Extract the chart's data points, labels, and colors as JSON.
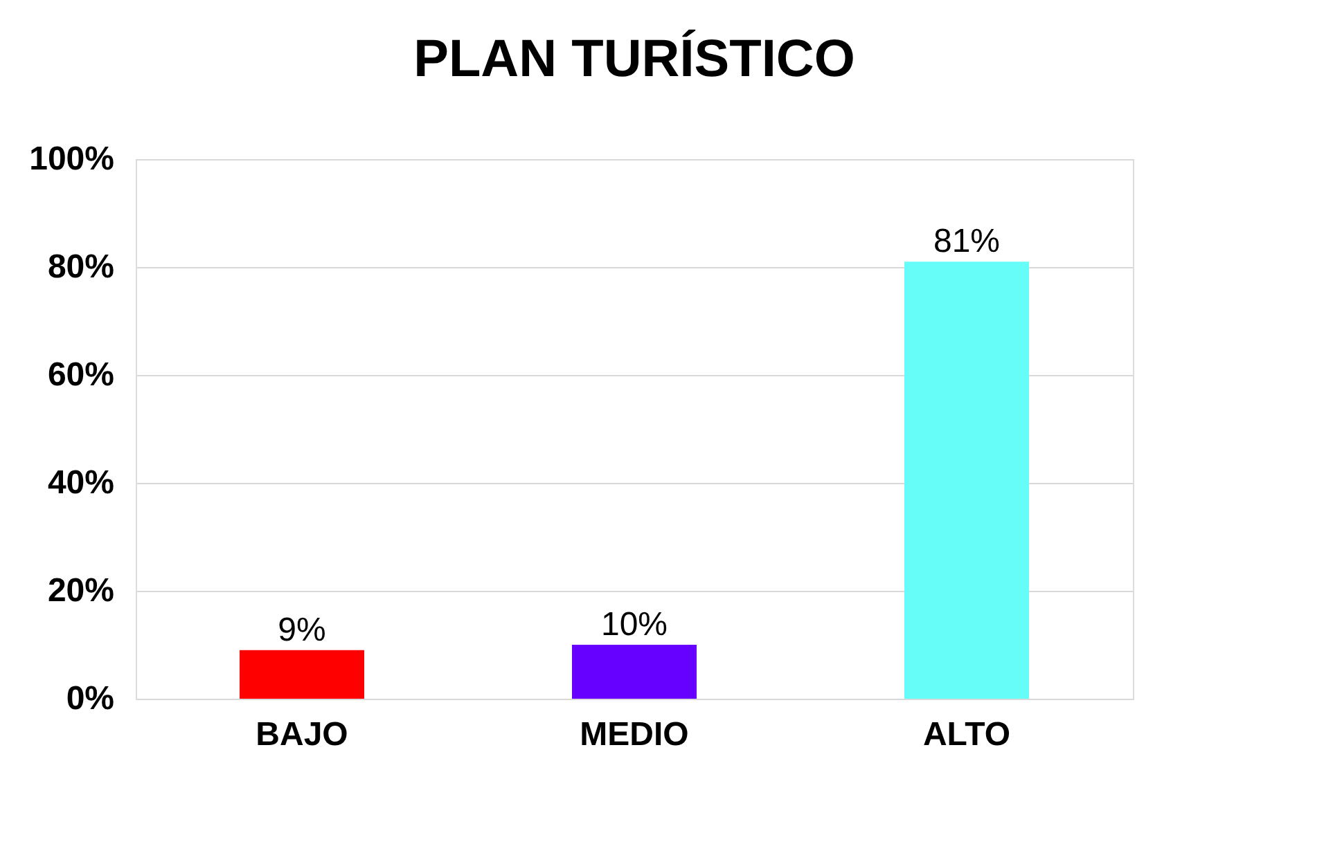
{
  "chart_data": {
    "type": "bar",
    "title": "PLAN TURÍSTICO",
    "categories": [
      "BAJO",
      "MEDIO",
      "ALTO"
    ],
    "values": [
      9,
      10,
      81
    ],
    "colors": [
      "#ff0000",
      "#6600ff",
      "#66fcf7"
    ],
    "value_labels": [
      "9%",
      "10%",
      "81%"
    ],
    "ylim": [
      0,
      100
    ],
    "yticks": [
      {
        "value": 0,
        "label": "0%"
      },
      {
        "value": 20,
        "label": "20%"
      },
      {
        "value": 40,
        "label": "40%"
      },
      {
        "value": 60,
        "label": "60%"
      },
      {
        "value": 80,
        "label": "80%"
      },
      {
        "value": 100,
        "label": "100%"
      }
    ],
    "grid": "y",
    "legend": false
  }
}
